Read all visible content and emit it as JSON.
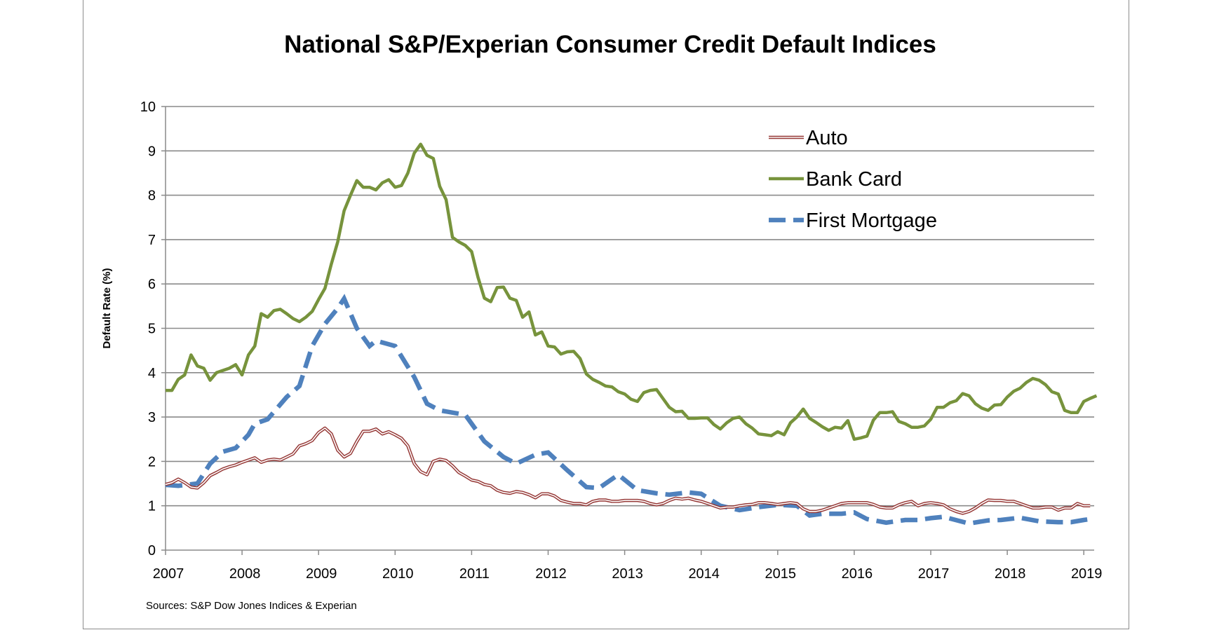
{
  "chart_data": {
    "type": "line",
    "title": "National S&P/Experian Consumer Credit Default Indices",
    "ylabel": "Default Rate (%)",
    "xlabel": "",
    "ylim": [
      0,
      10
    ],
    "yticks": [
      "0",
      "1",
      "2",
      "3",
      "4",
      "5",
      "6",
      "7",
      "8",
      "9",
      "10"
    ],
    "xlim": [
      "2007",
      "2019"
    ],
    "xticks": [
      "2007",
      "2008",
      "2009",
      "2010",
      "2011",
      "2012",
      "2013",
      "2014",
      "2015",
      "2016",
      "2017",
      "2018",
      "2019"
    ],
    "grid": "horizontal",
    "legend_placement": "top-right",
    "source": "Sources: S&P Dow Jones Indices & Experian",
    "series": [
      {
        "name": "Auto",
        "color": "#953735",
        "style": "double-line",
        "frequency": "monthly",
        "monthly_values": {
          "2007": [
            1.48,
            1.52,
            1.6,
            1.52,
            1.42,
            1.4,
            1.52,
            1.68,
            1.75,
            1.83,
            1.88,
            1.92
          ],
          "2008": [
            1.98,
            2.03,
            2.08,
            1.98,
            2.03,
            2.05,
            2.03,
            2.1,
            2.17,
            2.35,
            2.4,
            2.47
          ],
          "2009": [
            2.65,
            2.75,
            2.62,
            2.25,
            2.1,
            2.18,
            2.45,
            2.68,
            2.68,
            2.73,
            2.62,
            2.67
          ],
          "2010": [
            2.6,
            2.52,
            2.35,
            1.95,
            1.77,
            1.7,
            2.0,
            2.05,
            2.02,
            1.9,
            1.75,
            1.67
          ],
          "2011": [
            1.58,
            1.55,
            1.48,
            1.45,
            1.35,
            1.3,
            1.28,
            1.32,
            1.3,
            1.25,
            1.18,
            1.27
          ],
          "2012": [
            1.27,
            1.22,
            1.12,
            1.08,
            1.05,
            1.05,
            1.02,
            1.1,
            1.13,
            1.13,
            1.1,
            1.1
          ],
          "2013": [
            1.12,
            1.12,
            1.12,
            1.1,
            1.05,
            1.02,
            1.05,
            1.12,
            1.17,
            1.15,
            1.17,
            1.13
          ],
          "2014": [
            1.1,
            1.05,
            1.0,
            0.95,
            0.97,
            0.97,
            1.0,
            1.02,
            1.03,
            1.07,
            1.07,
            1.05
          ],
          "2015": [
            1.03,
            1.05,
            1.07,
            1.05,
            0.93,
            0.87,
            0.87,
            0.9,
            0.95,
            1.0,
            1.05,
            1.07
          ],
          "2016": [
            1.07,
            1.07,
            1.07,
            1.03,
            0.97,
            0.95,
            0.95,
            1.02,
            1.07,
            1.1,
            1.0,
            1.05
          ],
          "2017": [
            1.07,
            1.05,
            1.02,
            0.93,
            0.87,
            0.83,
            0.87,
            0.95,
            1.05,
            1.13,
            1.12,
            1.12
          ],
          "2018": [
            1.1,
            1.1,
            1.05,
            1.0,
            0.95,
            0.95,
            0.97,
            0.97,
            0.9,
            0.95,
            0.95,
            1.05
          ],
          "2019": [
            1.0,
            1.0
          ]
        }
      },
      {
        "name": "Bank Card",
        "color": "#77933c",
        "style": "solid",
        "frequency": "monthly",
        "monthly_values": {
          "2007": [
            3.6,
            3.6,
            3.85,
            3.95,
            4.4,
            4.15,
            4.1,
            3.83,
            4.0,
            4.05,
            4.1,
            4.18
          ],
          "2008": [
            3.95,
            4.4,
            4.6,
            5.33,
            5.25,
            5.4,
            5.43,
            5.33,
            5.22,
            5.15,
            5.25,
            5.38
          ],
          "2009": [
            5.65,
            5.9,
            6.45,
            6.95,
            7.65,
            8.0,
            8.33,
            8.18,
            8.18,
            8.12,
            8.28,
            8.35
          ],
          "2010": [
            8.18,
            8.22,
            8.5,
            8.95,
            9.15,
            8.9,
            8.83,
            8.2,
            7.9,
            7.05,
            6.95,
            6.87
          ],
          "2011": [
            6.73,
            6.15,
            5.68,
            5.6,
            5.92,
            5.93,
            5.68,
            5.63,
            5.25,
            5.37,
            4.85,
            4.92
          ],
          "2012": [
            4.6,
            4.58,
            4.42,
            4.47,
            4.48,
            4.32,
            3.97,
            3.85,
            3.78,
            3.7,
            3.68,
            3.57
          ],
          "2013": [
            3.52,
            3.4,
            3.35,
            3.55,
            3.6,
            3.62,
            3.42,
            3.22,
            3.12,
            3.13,
            2.97,
            2.97
          ],
          "2014": [
            2.98,
            2.98,
            2.83,
            2.73,
            2.87,
            2.97,
            3.0,
            2.85,
            2.75,
            2.62,
            2.6,
            2.58
          ],
          "2015": [
            2.67,
            2.6,
            2.87,
            3.0,
            3.18,
            2.97,
            2.88,
            2.78,
            2.7,
            2.77,
            2.75,
            2.92
          ],
          "2016": [
            2.5,
            2.53,
            2.57,
            2.93,
            3.1,
            3.1,
            3.12,
            2.9,
            2.85,
            2.77,
            2.77,
            2.8
          ],
          "2017": [
            2.95,
            3.22,
            3.22,
            3.32,
            3.37,
            3.53,
            3.48,
            3.3,
            3.2,
            3.15,
            3.27,
            3.28
          ],
          "2018": [
            3.45,
            3.58,
            3.65,
            3.78,
            3.87,
            3.83,
            3.73,
            3.57,
            3.52,
            3.15,
            3.1,
            3.1
          ],
          "2019": [
            3.35,
            3.42,
            3.48
          ]
        }
      },
      {
        "name": "First Mortgage",
        "color": "#4f81bd",
        "style": "dashed",
        "points": [
          [
            "2007-01",
            1.47
          ],
          [
            "2007-03",
            1.45
          ],
          [
            "2007-06",
            1.5
          ],
          [
            "2007-08",
            1.95
          ],
          [
            "2007-10",
            2.22
          ],
          [
            "2007-12",
            2.3
          ],
          [
            "2008-02",
            2.6
          ],
          [
            "2008-03",
            2.85
          ],
          [
            "2008-05",
            2.95
          ],
          [
            "2008-08",
            3.45
          ],
          [
            "2008-10",
            3.7
          ],
          [
            "2008-12",
            4.6
          ],
          [
            "2009-02",
            5.1
          ],
          [
            "2009-04",
            5.45
          ],
          [
            "2009-05",
            5.67
          ],
          [
            "2009-07",
            5.0
          ],
          [
            "2009-09",
            4.6
          ],
          [
            "2009-10",
            4.72
          ],
          [
            "2010-01",
            4.6
          ],
          [
            "2010-04",
            3.9
          ],
          [
            "2010-06",
            3.3
          ],
          [
            "2010-08",
            3.15
          ],
          [
            "2010-12",
            3.05
          ],
          [
            "2011-03",
            2.45
          ],
          [
            "2011-06",
            2.1
          ],
          [
            "2011-08",
            1.95
          ],
          [
            "2011-11",
            2.15
          ],
          [
            "2012-01",
            2.2
          ],
          [
            "2012-04",
            1.8
          ],
          [
            "2012-07",
            1.42
          ],
          [
            "2012-09",
            1.4
          ],
          [
            "2012-12",
            1.7
          ],
          [
            "2013-03",
            1.35
          ],
          [
            "2013-06",
            1.28
          ],
          [
            "2013-08",
            1.25
          ],
          [
            "2013-11",
            1.3
          ],
          [
            "2014-01",
            1.27
          ],
          [
            "2014-04",
            1.0
          ],
          [
            "2014-07",
            0.9
          ],
          [
            "2014-10",
            0.97
          ],
          [
            "2015-01",
            1.02
          ],
          [
            "2015-04",
            1.0
          ],
          [
            "2015-06",
            0.78
          ],
          [
            "2015-08",
            0.82
          ],
          [
            "2015-11",
            0.82
          ],
          [
            "2016-01",
            0.85
          ],
          [
            "2016-03",
            0.7
          ],
          [
            "2016-06",
            0.62
          ],
          [
            "2016-09",
            0.68
          ],
          [
            "2016-11",
            0.68
          ],
          [
            "2017-01",
            0.72
          ],
          [
            "2017-03",
            0.75
          ],
          [
            "2017-07",
            0.6
          ],
          [
            "2017-10",
            0.67
          ],
          [
            "2017-12",
            0.68
          ],
          [
            "2018-03",
            0.73
          ],
          [
            "2018-06",
            0.65
          ],
          [
            "2018-09",
            0.63
          ],
          [
            "2018-11",
            0.63
          ],
          [
            "2019-01",
            0.68
          ],
          [
            "2019-02",
            0.7
          ]
        ]
      }
    ]
  }
}
